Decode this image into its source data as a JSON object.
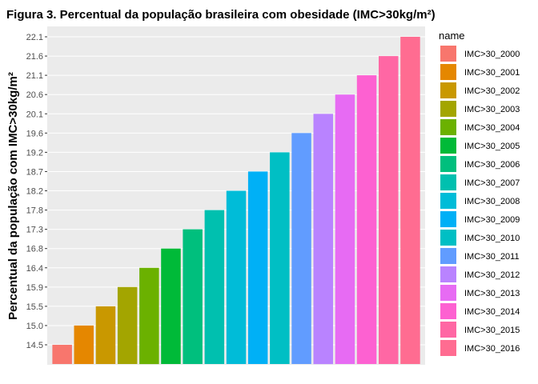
{
  "chart_data": {
    "type": "bar",
    "title": "Figura 3. Percentual da população brasileira com obesidade (IMC>30kg/m²)",
    "ylabel": "Percentual da população com IMC>30kg/m²",
    "xlabel": "",
    "legend_title": "name",
    "legend_position": "right",
    "grid": true,
    "categories": [
      "IMC>30_2000",
      "IMC>30_2001",
      "IMC>30_2002",
      "IMC>30_2003",
      "IMC>30_2004",
      "IMC>30_2005",
      "IMC>30_2006",
      "IMC>30_2007",
      "IMC>30_2008",
      "IMC>30_2009",
      "IMC>30_2010",
      "IMC>30_2011",
      "IMC>30_2012",
      "IMC>30_2013",
      "IMC>30_2014",
      "IMC>30_2015",
      "IMC>30_2016"
    ],
    "values": [
      14.5,
      15.0,
      15.5,
      15.9,
      16.4,
      16.8,
      17.3,
      17.8,
      18.2,
      18.7,
      19.2,
      19.6,
      20.1,
      20.6,
      21.1,
      21.6,
      22.1
    ],
    "y_tick_labels": [
      "14.5",
      "15.0",
      "15.5",
      "15.9",
      "16.4",
      "16.8",
      "17.3",
      "17.8",
      "18.2",
      "18.7",
      "19.2",
      "19.6",
      "20.1",
      "20.6",
      "21.1",
      "21.6",
      "22.1"
    ],
    "colors": [
      "#F8766D",
      "#E58700",
      "#C99800",
      "#A3A500",
      "#6BB100",
      "#00BA38",
      "#00BF7D",
      "#00C0AF",
      "#00BCD8",
      "#00B0F6",
      "#00BFC4",
      "#619CFF",
      "#B983FF",
      "#E76BF3",
      "#FD61D1",
      "#FF67A4",
      "#FF6C91"
    ]
  }
}
